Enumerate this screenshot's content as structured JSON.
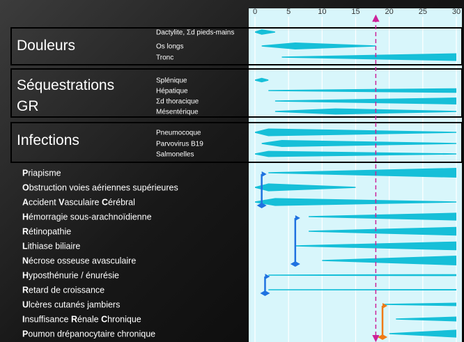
{
  "colors": {
    "panel": "#d8f6fb",
    "grid": "#ffffff",
    "wedge": "#16bfd8",
    "dashed_line": "#cc2299",
    "bracket_blue": "#1f72e0",
    "bracket_orange": "#f07a16"
  },
  "chart_data": {
    "type": "timeline",
    "x_ticks": [
      "0",
      "5",
      "10",
      "15",
      "20",
      "25",
      "30"
    ],
    "xlim": [
      0,
      30
    ],
    "reference_age": 18,
    "groups": [
      {
        "title": "Douleurs",
        "items": [
          {
            "label": "Dactylite, Σd pieds-mains",
            "start": 0,
            "peak": 1,
            "end": 3,
            "peak_thickness": 0.7
          },
          {
            "label": "Os longs",
            "start": 1,
            "peak": 6,
            "end": 18,
            "peak_thickness": 0.9
          },
          {
            "label": "Tronc",
            "start": 4,
            "peak": 30,
            "end": 30,
            "peak_thickness": 1.0
          }
        ]
      },
      {
        "title": "Séquestrations GR",
        "items": [
          {
            "label": "Splénique",
            "start": 0,
            "peak": 1,
            "end": 2,
            "peak_thickness": 0.6
          },
          {
            "label": "Hépatique",
            "start": 2,
            "peak": 30,
            "end": 30,
            "peak_thickness": 0.6
          },
          {
            "label": "Σd thoracique",
            "start": 3,
            "peak": 30,
            "end": 30,
            "peak_thickness": 0.9
          },
          {
            "label": "Mésentérique",
            "start": 3,
            "peak": 12,
            "end": 30,
            "peak_thickness": 0.8
          }
        ]
      },
      {
        "title": "Infections",
        "items": [
          {
            "label": "Pneumocoque",
            "start": 0,
            "peak": 2,
            "end": 30,
            "peak_thickness": 1.0
          },
          {
            "label": "Parvovirus B19",
            "start": 1,
            "peak": 4,
            "end": 30,
            "peak_thickness": 0.9
          },
          {
            "label": "Salmonelles",
            "start": 0,
            "peak": 2,
            "end": 30,
            "peak_thickness": 0.8
          }
        ]
      }
    ],
    "list": [
      {
        "segments": [
          {
            "t": "P",
            "b": true
          },
          {
            "t": "riapisme",
            "b": false
          }
        ],
        "start": 2,
        "peak": 30,
        "end": 30,
        "peak_thickness": 1.0
      },
      {
        "segments": [
          {
            "t": "O",
            "b": true
          },
          {
            "t": "bstruction voies aériennes supérieures",
            "b": false
          }
        ],
        "start": 0,
        "peak": 2,
        "end": 15,
        "peak_thickness": 0.8
      },
      {
        "segments": [
          {
            "t": "A",
            "b": true
          },
          {
            "t": "ccident ",
            "b": false
          },
          {
            "t": "V",
            "b": true
          },
          {
            "t": "asculaire ",
            "b": false
          },
          {
            "t": "C",
            "b": true
          },
          {
            "t": "érébral",
            "b": false
          }
        ],
        "start": 0,
        "peak": 3,
        "end": 30,
        "peak_thickness": 0.8
      },
      {
        "segments": [
          {
            "t": "H",
            "b": true
          },
          {
            "t": "émorragie sous-arachnoïdienne",
            "b": false
          }
        ],
        "start": 8,
        "peak": 30,
        "end": 30,
        "peak_thickness": 0.8
      },
      {
        "segments": [
          {
            "t": "R",
            "b": true
          },
          {
            "t": "étinopathie",
            "b": false
          }
        ],
        "start": 8,
        "peak": 30,
        "end": 30,
        "peak_thickness": 0.9
      },
      {
        "segments": [
          {
            "t": "L",
            "b": true
          },
          {
            "t": "ithiase biliaire",
            "b": false
          }
        ],
        "start": 6,
        "peak": 30,
        "end": 30,
        "peak_thickness": 0.9
      },
      {
        "segments": [
          {
            "t": "N",
            "b": true
          },
          {
            "t": "écrose osseuse avasculaire",
            "b": false
          }
        ],
        "start": 10,
        "peak": 30,
        "end": 30,
        "peak_thickness": 1.0
      },
      {
        "segments": [
          {
            "t": "H",
            "b": true
          },
          {
            "t": "yposthénurie / énurésie",
            "b": false
          }
        ],
        "start": 2,
        "peak": 30,
        "end": 30,
        "peak_thickness": 0.2
      },
      {
        "segments": [
          {
            "t": "R",
            "b": true
          },
          {
            "t": "etard de croissance",
            "b": false
          }
        ],
        "start": 2,
        "peak": 30,
        "end": 30,
        "peak_thickness": 0.15
      },
      {
        "segments": [
          {
            "t": "U",
            "b": true
          },
          {
            "t": "lcères cutanés jambiers",
            "b": false
          }
        ],
        "start": 19,
        "peak": 30,
        "end": 30,
        "peak_thickness": 0.35
      },
      {
        "segments": [
          {
            "t": "I",
            "b": true
          },
          {
            "t": "nsuffisance ",
            "b": false
          },
          {
            "t": "R",
            "b": true
          },
          {
            "t": "énale ",
            "b": false
          },
          {
            "t": "C",
            "b": true
          },
          {
            "t": "hronique",
            "b": false
          }
        ],
        "start": 21,
        "peak": 30,
        "end": 30,
        "peak_thickness": 0.5
      },
      {
        "segments": [
          {
            "t": "P",
            "b": true
          },
          {
            "t": "oumon drépanocytaire chronique",
            "b": false
          }
        ],
        "start": 20,
        "peak": 30,
        "end": 30,
        "peak_thickness": 0.8
      }
    ],
    "brackets": [
      {
        "from_row": 0,
        "to_row": 2,
        "age": 1,
        "color": "blue"
      },
      {
        "from_row": 3,
        "to_row": 6,
        "age": 6,
        "color": "blue"
      },
      {
        "from_row": 7,
        "to_row": 8,
        "age": 1.5,
        "color": "blue"
      },
      {
        "from_row": 9,
        "to_row": 11,
        "age": 19,
        "color": "orange"
      }
    ]
  }
}
